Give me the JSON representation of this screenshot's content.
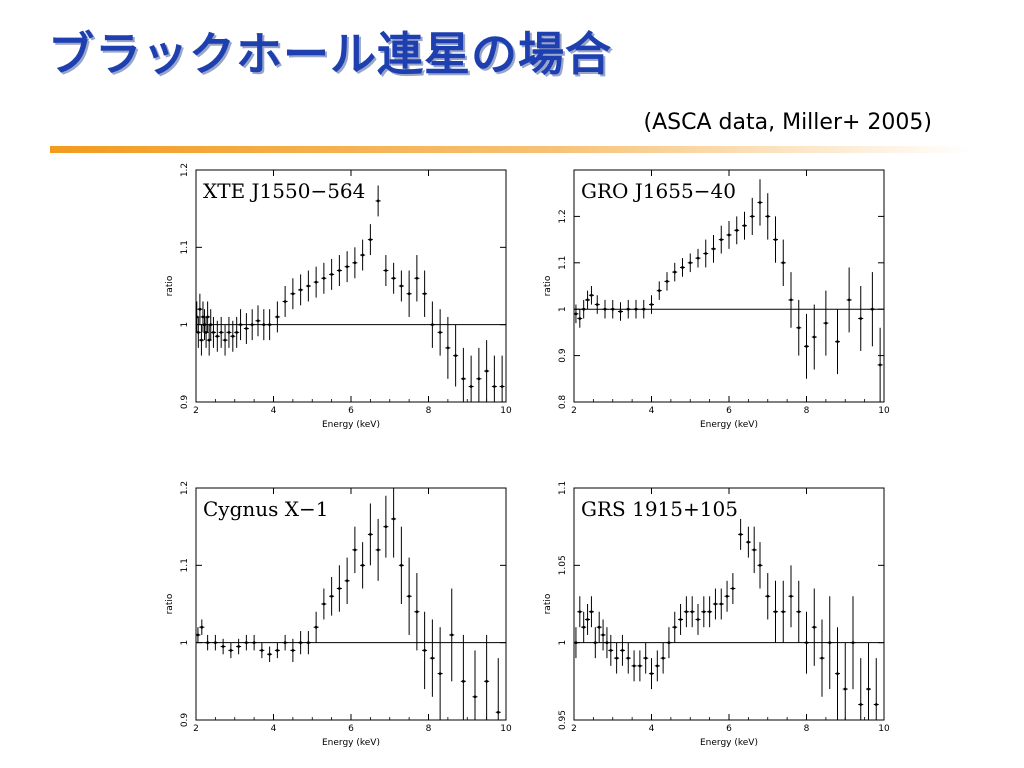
{
  "slide": {
    "title": "ブラックホール連星の場合",
    "subtitle": "(ASCA data, Miller+ 2005)",
    "accent_color": "#f5a623"
  },
  "chart_data": [
    {
      "type": "scatter",
      "label": "XTE J1550−564",
      "xlabel": "Energy (keV)",
      "ylabel": "ratio",
      "xlim": [
        2,
        10
      ],
      "ylim": [
        0.9,
        1.2
      ],
      "xticks": [
        2,
        4,
        6,
        8,
        10
      ],
      "yticks": [
        0.9,
        1,
        1.1,
        1.2
      ],
      "ytick_labels": [
        "0.9",
        "1",
        "1.1",
        "1.2"
      ],
      "reference_line": 1.0,
      "points": [
        [
          2.02,
          1.01,
          0.02
        ],
        [
          2.06,
          0.99,
          0.02
        ],
        [
          2.1,
          1.02,
          0.02
        ],
        [
          2.14,
          0.98,
          0.02
        ],
        [
          2.18,
          1.01,
          0.02
        ],
        [
          2.22,
          1.0,
          0.02
        ],
        [
          2.26,
          0.99,
          0.02
        ],
        [
          2.3,
          1.01,
          0.02
        ],
        [
          2.34,
          0.98,
          0.02
        ],
        [
          2.38,
          1.0,
          0.02
        ],
        [
          2.45,
          0.99,
          0.02
        ],
        [
          2.55,
          0.985,
          0.02
        ],
        [
          2.65,
          0.99,
          0.02
        ],
        [
          2.75,
          0.98,
          0.02
        ],
        [
          2.85,
          0.99,
          0.02
        ],
        [
          2.95,
          0.985,
          0.02
        ],
        [
          3.05,
          0.99,
          0.02
        ],
        [
          3.15,
          1.0,
          0.02
        ],
        [
          3.3,
          0.995,
          0.02
        ],
        [
          3.45,
          1.0,
          0.02
        ],
        [
          3.6,
          1.005,
          0.02
        ],
        [
          3.75,
          1.0,
          0.02
        ],
        [
          3.9,
          1.0,
          0.02
        ],
        [
          4.1,
          1.01,
          0.02
        ],
        [
          4.3,
          1.03,
          0.02
        ],
        [
          4.5,
          1.04,
          0.02
        ],
        [
          4.7,
          1.045,
          0.02
        ],
        [
          4.9,
          1.05,
          0.02
        ],
        [
          5.1,
          1.055,
          0.02
        ],
        [
          5.3,
          1.06,
          0.02
        ],
        [
          5.5,
          1.065,
          0.02
        ],
        [
          5.7,
          1.07,
          0.02
        ],
        [
          5.9,
          1.075,
          0.02
        ],
        [
          6.1,
          1.08,
          0.02
        ],
        [
          6.3,
          1.09,
          0.02
        ],
        [
          6.5,
          1.11,
          0.02
        ],
        [
          6.7,
          1.16,
          0.02
        ],
        [
          6.9,
          1.07,
          0.02
        ],
        [
          7.1,
          1.06,
          0.02
        ],
        [
          7.3,
          1.05,
          0.02
        ],
        [
          7.5,
          1.04,
          0.03
        ],
        [
          7.7,
          1.06,
          0.03
        ],
        [
          7.9,
          1.04,
          0.03
        ],
        [
          8.1,
          1.0,
          0.03
        ],
        [
          8.3,
          0.99,
          0.03
        ],
        [
          8.5,
          0.97,
          0.04
        ],
        [
          8.7,
          0.96,
          0.04
        ],
        [
          8.9,
          0.93,
          0.04
        ],
        [
          9.1,
          0.92,
          0.04
        ],
        [
          9.3,
          0.93,
          0.04
        ],
        [
          9.5,
          0.94,
          0.04
        ],
        [
          9.7,
          0.92,
          0.04
        ],
        [
          9.9,
          0.92,
          0.04
        ]
      ]
    },
    {
      "type": "scatter",
      "label": "GRO J1655−40",
      "xlabel": "Energy (keV)",
      "ylabel": "ratio",
      "xlim": [
        2,
        10
      ],
      "ylim": [
        0.8,
        1.3
      ],
      "xticks": [
        2,
        4,
        6,
        8,
        10
      ],
      "yticks": [
        0.8,
        0.9,
        1,
        1.1,
        1.2
      ],
      "ytick_labels": [
        "0.8",
        "0.9",
        "1",
        "1.1",
        "1.2"
      ],
      "reference_line": 1.0,
      "points": [
        [
          2.05,
          0.99,
          0.02
        ],
        [
          2.15,
          0.98,
          0.02
        ],
        [
          2.25,
          1.0,
          0.02
        ],
        [
          2.35,
          1.02,
          0.02
        ],
        [
          2.45,
          1.03,
          0.02
        ],
        [
          2.6,
          1.01,
          0.02
        ],
        [
          2.8,
          1.0,
          0.02
        ],
        [
          3.0,
          1.0,
          0.02
        ],
        [
          3.2,
          0.995,
          0.02
        ],
        [
          3.4,
          1.0,
          0.02
        ],
        [
          3.6,
          1.0,
          0.02
        ],
        [
          3.8,
          1.0,
          0.02
        ],
        [
          4.0,
          1.01,
          0.02
        ],
        [
          4.2,
          1.04,
          0.02
        ],
        [
          4.4,
          1.06,
          0.02
        ],
        [
          4.6,
          1.08,
          0.02
        ],
        [
          4.8,
          1.09,
          0.02
        ],
        [
          5.0,
          1.1,
          0.02
        ],
        [
          5.2,
          1.11,
          0.02
        ],
        [
          5.4,
          1.12,
          0.03
        ],
        [
          5.6,
          1.13,
          0.03
        ],
        [
          5.8,
          1.15,
          0.03
        ],
        [
          6.0,
          1.16,
          0.03
        ],
        [
          6.2,
          1.17,
          0.03
        ],
        [
          6.4,
          1.18,
          0.03
        ],
        [
          6.6,
          1.2,
          0.04
        ],
        [
          6.8,
          1.23,
          0.05
        ],
        [
          7.0,
          1.2,
          0.05
        ],
        [
          7.2,
          1.15,
          0.05
        ],
        [
          7.4,
          1.1,
          0.05
        ],
        [
          7.6,
          1.02,
          0.06
        ],
        [
          7.8,
          0.96,
          0.06
        ],
        [
          8.0,
          0.92,
          0.07
        ],
        [
          8.2,
          0.94,
          0.07
        ],
        [
          8.5,
          0.97,
          0.07
        ],
        [
          8.8,
          0.93,
          0.07
        ],
        [
          9.1,
          1.02,
          0.07
        ],
        [
          9.4,
          0.98,
          0.07
        ],
        [
          9.7,
          1.0,
          0.08
        ],
        [
          9.9,
          0.88,
          0.08
        ]
      ]
    },
    {
      "type": "scatter",
      "label": "Cygnus X−1",
      "xlabel": "Energy (keV)",
      "ylabel": "ratio",
      "xlim": [
        2,
        10
      ],
      "ylim": [
        0.9,
        1.2
      ],
      "xticks": [
        2,
        4,
        6,
        8,
        10
      ],
      "yticks": [
        0.9,
        1,
        1.1,
        1.2
      ],
      "ytick_labels": [
        "0.9",
        "1",
        "1.1",
        "1.2"
      ],
      "reference_line": 1.0,
      "points": [
        [
          2.05,
          1.01,
          0.01
        ],
        [
          2.15,
          1.02,
          0.01
        ],
        [
          2.3,
          1.0,
          0.01
        ],
        [
          2.5,
          1.0,
          0.01
        ],
        [
          2.7,
          0.995,
          0.01
        ],
        [
          2.9,
          0.99,
          0.01
        ],
        [
          3.1,
          0.995,
          0.01
        ],
        [
          3.3,
          1.0,
          0.01
        ],
        [
          3.5,
          1.0,
          0.01
        ],
        [
          3.7,
          0.99,
          0.01
        ],
        [
          3.9,
          0.985,
          0.01
        ],
        [
          4.1,
          0.99,
          0.01
        ],
        [
          4.3,
          1.0,
          0.01
        ],
        [
          4.5,
          0.99,
          0.015
        ],
        [
          4.7,
          1.0,
          0.015
        ],
        [
          4.9,
          1.0,
          0.015
        ],
        [
          5.1,
          1.02,
          0.02
        ],
        [
          5.3,
          1.05,
          0.02
        ],
        [
          5.5,
          1.06,
          0.025
        ],
        [
          5.7,
          1.07,
          0.03
        ],
        [
          5.9,
          1.08,
          0.03
        ],
        [
          6.1,
          1.12,
          0.03
        ],
        [
          6.3,
          1.1,
          0.03
        ],
        [
          6.5,
          1.14,
          0.04
        ],
        [
          6.7,
          1.12,
          0.04
        ],
        [
          6.9,
          1.15,
          0.04
        ],
        [
          7.1,
          1.16,
          0.05
        ],
        [
          7.3,
          1.1,
          0.05
        ],
        [
          7.5,
          1.06,
          0.05
        ],
        [
          7.7,
          1.04,
          0.05
        ],
        [
          7.9,
          0.99,
          0.05
        ],
        [
          8.1,
          0.98,
          0.05
        ],
        [
          8.3,
          0.96,
          0.06
        ],
        [
          8.6,
          1.01,
          0.06
        ],
        [
          8.9,
          0.95,
          0.06
        ],
        [
          9.2,
          0.93,
          0.06
        ],
        [
          9.5,
          0.95,
          0.06
        ],
        [
          9.8,
          0.91,
          0.07
        ]
      ]
    },
    {
      "type": "scatter",
      "label": "GRS 1915+105",
      "xlabel": "Energy (keV)",
      "ylabel": "ratio",
      "xlim": [
        2,
        10
      ],
      "ylim": [
        0.95,
        1.1
      ],
      "xticks": [
        2,
        4,
        6,
        8,
        10
      ],
      "yticks": [
        0.95,
        1,
        1.05,
        1.1
      ],
      "ytick_labels": [
        "0.95",
        "1",
        "1.05",
        "1.1"
      ],
      "reference_line": 1.0,
      "points": [
        [
          2.05,
          1.0,
          0.01
        ],
        [
          2.15,
          1.02,
          0.01
        ],
        [
          2.25,
          1.01,
          0.01
        ],
        [
          2.35,
          1.015,
          0.01
        ],
        [
          2.45,
          1.02,
          0.01
        ],
        [
          2.55,
          1.0,
          0.01
        ],
        [
          2.65,
          1.01,
          0.01
        ],
        [
          2.75,
          1.005,
          0.01
        ],
        [
          2.85,
          1.0,
          0.01
        ],
        [
          2.95,
          0.995,
          0.01
        ],
        [
          3.1,
          0.99,
          0.01
        ],
        [
          3.25,
          0.995,
          0.01
        ],
        [
          3.4,
          0.99,
          0.01
        ],
        [
          3.55,
          0.985,
          0.01
        ],
        [
          3.7,
          0.985,
          0.01
        ],
        [
          3.85,
          0.99,
          0.01
        ],
        [
          4.0,
          0.98,
          0.01
        ],
        [
          4.15,
          0.985,
          0.01
        ],
        [
          4.3,
          0.99,
          0.01
        ],
        [
          4.45,
          1.0,
          0.01
        ],
        [
          4.6,
          1.01,
          0.01
        ],
        [
          4.75,
          1.015,
          0.01
        ],
        [
          4.9,
          1.02,
          0.01
        ],
        [
          5.05,
          1.02,
          0.01
        ],
        [
          5.2,
          1.015,
          0.01
        ],
        [
          5.35,
          1.02,
          0.01
        ],
        [
          5.5,
          1.02,
          0.01
        ],
        [
          5.65,
          1.025,
          0.01
        ],
        [
          5.8,
          1.025,
          0.01
        ],
        [
          5.95,
          1.03,
          0.01
        ],
        [
          6.1,
          1.035,
          0.01
        ],
        [
          6.3,
          1.07,
          0.01
        ],
        [
          6.5,
          1.065,
          0.01
        ],
        [
          6.65,
          1.06,
          0.015
        ],
        [
          6.8,
          1.05,
          0.015
        ],
        [
          7.0,
          1.03,
          0.015
        ],
        [
          7.2,
          1.02,
          0.02
        ],
        [
          7.4,
          1.02,
          0.02
        ],
        [
          7.6,
          1.03,
          0.02
        ],
        [
          7.8,
          1.02,
          0.02
        ],
        [
          8.0,
          1.0,
          0.02
        ],
        [
          8.2,
          1.01,
          0.025
        ],
        [
          8.4,
          0.99,
          0.025
        ],
        [
          8.6,
          1.0,
          0.03
        ],
        [
          8.8,
          0.98,
          0.03
        ],
        [
          9.0,
          0.97,
          0.03
        ],
        [
          9.2,
          1.0,
          0.03
        ],
        [
          9.4,
          0.96,
          0.03
        ],
        [
          9.6,
          0.97,
          0.03
        ],
        [
          9.8,
          0.96,
          0.03
        ]
      ]
    }
  ]
}
